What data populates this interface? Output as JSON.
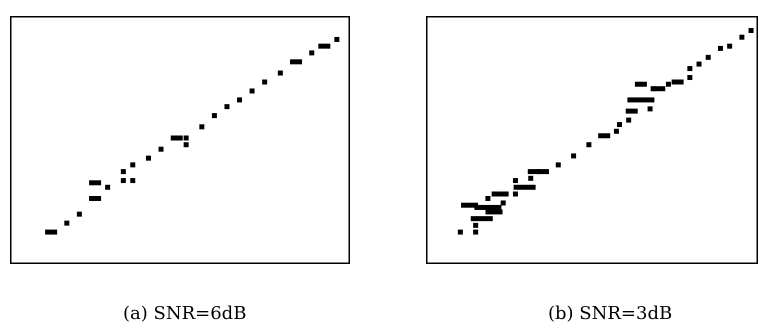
{
  "figure": {
    "caption_a": "(a) SNR=6dB",
    "caption_b": "(b) SNR=3dB"
  },
  "chart_data": [
    {
      "type": "scatter",
      "title": "",
      "xlabel": "",
      "ylabel": "",
      "xlim": [
        0,
        100
      ],
      "ylim": [
        0,
        100
      ],
      "grid": false,
      "marker": "square",
      "points": [
        {
          "x": 8,
          "y": 8,
          "w": 2
        },
        {
          "x": 13,
          "y": 12
        },
        {
          "x": 17,
          "y": 16
        },
        {
          "x": 22,
          "y": 23,
          "w": 2
        },
        {
          "x": 22,
          "y": 30,
          "w": 2
        },
        {
          "x": 26,
          "y": 28
        },
        {
          "x": 31,
          "y": 31
        },
        {
          "x": 31,
          "y": 35
        },
        {
          "x": 34,
          "y": 31
        },
        {
          "x": 34,
          "y": 38
        },
        {
          "x": 39,
          "y": 41
        },
        {
          "x": 43,
          "y": 45
        },
        {
          "x": 48,
          "y": 50,
          "w": 2
        },
        {
          "x": 51,
          "y": 50
        },
        {
          "x": 51,
          "y": 47
        },
        {
          "x": 56,
          "y": 55
        },
        {
          "x": 60,
          "y": 60
        },
        {
          "x": 64,
          "y": 64
        },
        {
          "x": 68,
          "y": 67
        },
        {
          "x": 72,
          "y": 71
        },
        {
          "x": 76,
          "y": 75
        },
        {
          "x": 81,
          "y": 79
        },
        {
          "x": 86,
          "y": 84,
          "w": 2
        },
        {
          "x": 91,
          "y": 88
        },
        {
          "x": 95,
          "y": 91,
          "w": 2
        },
        {
          "x": 99,
          "y": 94
        }
      ]
    },
    {
      "type": "scatter",
      "title": "",
      "xlabel": "",
      "ylabel": "",
      "xlim": [
        0,
        100
      ],
      "ylim": [
        0,
        100
      ],
      "grid": false,
      "marker": "square",
      "points": [
        {
          "x": 6,
          "y": 8
        },
        {
          "x": 9,
          "y": 20,
          "w": 3
        },
        {
          "x": 11,
          "y": 8
        },
        {
          "x": 11,
          "y": 11
        },
        {
          "x": 13,
          "y": 14,
          "w": 4
        },
        {
          "x": 15,
          "y": 19,
          "w": 5
        },
        {
          "x": 15,
          "y": 23
        },
        {
          "x": 17,
          "y": 17,
          "w": 3
        },
        {
          "x": 19,
          "y": 25,
          "w": 3
        },
        {
          "x": 20,
          "y": 21
        },
        {
          "x": 24,
          "y": 25
        },
        {
          "x": 24,
          "y": 31
        },
        {
          "x": 27,
          "y": 28,
          "w": 4
        },
        {
          "x": 29,
          "y": 32
        },
        {
          "x": 30,
          "y": 35,
          "w": 2
        },
        {
          "x": 33,
          "y": 35,
          "w": 2
        },
        {
          "x": 38,
          "y": 38
        },
        {
          "x": 43,
          "y": 42
        },
        {
          "x": 48,
          "y": 47
        },
        {
          "x": 53,
          "y": 51,
          "w": 2
        },
        {
          "x": 57,
          "y": 53
        },
        {
          "x": 58,
          "y": 56
        },
        {
          "x": 61,
          "y": 58
        },
        {
          "x": 62,
          "y": 62,
          "w": 2
        },
        {
          "x": 65,
          "y": 67,
          "w": 5
        },
        {
          "x": 65,
          "y": 74,
          "w": 2
        },
        {
          "x": 68,
          "y": 63
        },
        {
          "x": 69,
          "y": 72
        },
        {
          "x": 71,
          "y": 72,
          "w": 2
        },
        {
          "x": 74,
          "y": 74
        },
        {
          "x": 77,
          "y": 75,
          "w": 2
        },
        {
          "x": 81,
          "y": 77
        },
        {
          "x": 81,
          "y": 81
        },
        {
          "x": 84,
          "y": 83
        },
        {
          "x": 87,
          "y": 86
        },
        {
          "x": 91,
          "y": 90
        },
        {
          "x": 94,
          "y": 91
        },
        {
          "x": 98,
          "y": 95
        },
        {
          "x": 101,
          "y": 98
        }
      ]
    }
  ]
}
